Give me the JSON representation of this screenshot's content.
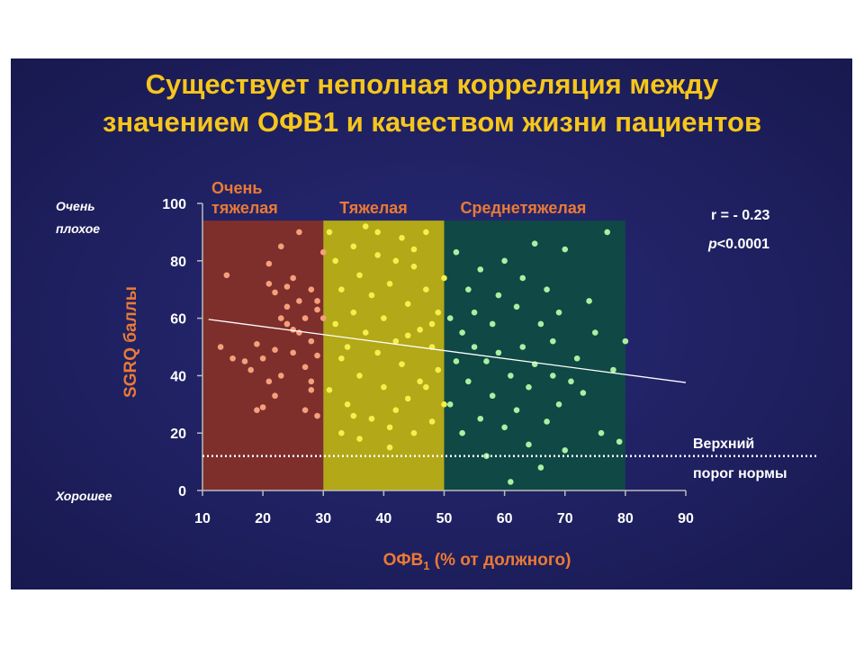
{
  "chart_data": {
    "type": "scatter",
    "title": [
      "Существует неполная корреляция между",
      "значением ОФВ1 и качеством жизни пациентов"
    ],
    "x_label": [
      "ОФВ",
      "1",
      " (% от должного)"
    ],
    "y_label": "SGRQ баллы",
    "y_top_note": [
      "Очень",
      "плохое"
    ],
    "y_bottom_note": "Хорошее",
    "stats": [
      "r = - 0.23",
      "p",
      "<0.0001"
    ],
    "reference_line": {
      "value": 12,
      "label": [
        "Верхний",
        "порог нормы"
      ]
    },
    "bands": [
      {
        "label": [
          "Очень",
          "тяжелая"
        ],
        "from": 10,
        "to": 30,
        "top": 94,
        "color": "#7e2f2c"
      },
      {
        "label": [
          "Тяжелая"
        ],
        "from": 30,
        "to": 50,
        "top": 94,
        "color": "#b3a817"
      },
      {
        "label": [
          "Среднетяжелая"
        ],
        "from": 50,
        "to": 80,
        "top": 94,
        "color": "#0f4845"
      }
    ],
    "series": [
      {
        "color": "#f5a07c",
        "x": [
          14,
          13,
          15,
          17,
          18,
          19,
          20,
          21,
          21,
          22,
          22,
          23,
          23,
          24,
          24,
          25,
          25,
          26,
          26,
          27,
          27,
          28,
          28,
          28,
          29,
          29,
          29,
          30,
          30,
          19,
          20,
          22,
          24,
          26,
          27,
          28,
          25,
          23,
          21,
          29
        ],
        "y": [
          75,
          50,
          46,
          45,
          42,
          28,
          46,
          38,
          79,
          33,
          49,
          60,
          85,
          64,
          58,
          74,
          56,
          90,
          66,
          60,
          28,
          70,
          52,
          38,
          66,
          47,
          26,
          83,
          60,
          51,
          29,
          69,
          71,
          55,
          43,
          35,
          48,
          40,
          72,
          63
        ]
      },
      {
        "color": "#f3f04c",
        "x": [
          31,
          31,
          32,
          32,
          33,
          33,
          34,
          34,
          35,
          35,
          36,
          36,
          37,
          37,
          38,
          38,
          39,
          39,
          40,
          40,
          41,
          41,
          42,
          42,
          43,
          43,
          44,
          44,
          45,
          45,
          46,
          46,
          47,
          47,
          48,
          48,
          49,
          49,
          50,
          50,
          33,
          36,
          39,
          42,
          45,
          48,
          35,
          41,
          44,
          47
        ],
        "y": [
          90,
          35,
          80,
          58,
          20,
          70,
          50,
          30,
          85,
          62,
          75,
          40,
          92,
          55,
          25,
          68,
          48,
          82,
          36,
          60,
          15,
          72,
          52,
          28,
          88,
          44,
          65,
          32,
          78,
          20,
          56,
          38,
          90,
          70,
          24,
          50,
          62,
          42,
          74,
          30,
          46,
          18,
          90,
          80,
          84,
          58,
          26,
          22,
          54,
          36
        ]
      },
      {
        "color": "#a9f0a0",
        "x": [
          51,
          51,
          52,
          52,
          53,
          53,
          54,
          54,
          55,
          55,
          56,
          56,
          57,
          57,
          58,
          58,
          59,
          59,
          60,
          60,
          61,
          61,
          62,
          62,
          63,
          63,
          64,
          64,
          65,
          65,
          66,
          66,
          67,
          67,
          68,
          68,
          69,
          69,
          70,
          70,
          72,
          73,
          74,
          75,
          76,
          77,
          78,
          79,
          80,
          71
        ],
        "y": [
          60,
          30,
          83,
          45,
          55,
          20,
          70,
          38,
          62,
          50,
          25,
          77,
          45,
          12,
          58,
          33,
          68,
          48,
          80,
          22,
          40,
          3,
          64,
          28,
          74,
          50,
          36,
          16,
          86,
          44,
          58,
          8,
          24,
          70,
          40,
          52,
          30,
          62,
          14,
          84,
          46,
          34,
          66,
          55,
          20,
          90,
          42,
          17,
          52,
          38
        ]
      }
    ],
    "fit": {
      "x": [
        11,
        90
      ],
      "y": [
        59.6,
        37.6
      ]
    },
    "xlim": [
      10,
      90
    ],
    "xticks": [
      10,
      20,
      30,
      40,
      50,
      60,
      70,
      80,
      90
    ],
    "ylim": [
      0,
      100
    ],
    "yticks": [
      0,
      20,
      40,
      60,
      80,
      100
    ]
  }
}
